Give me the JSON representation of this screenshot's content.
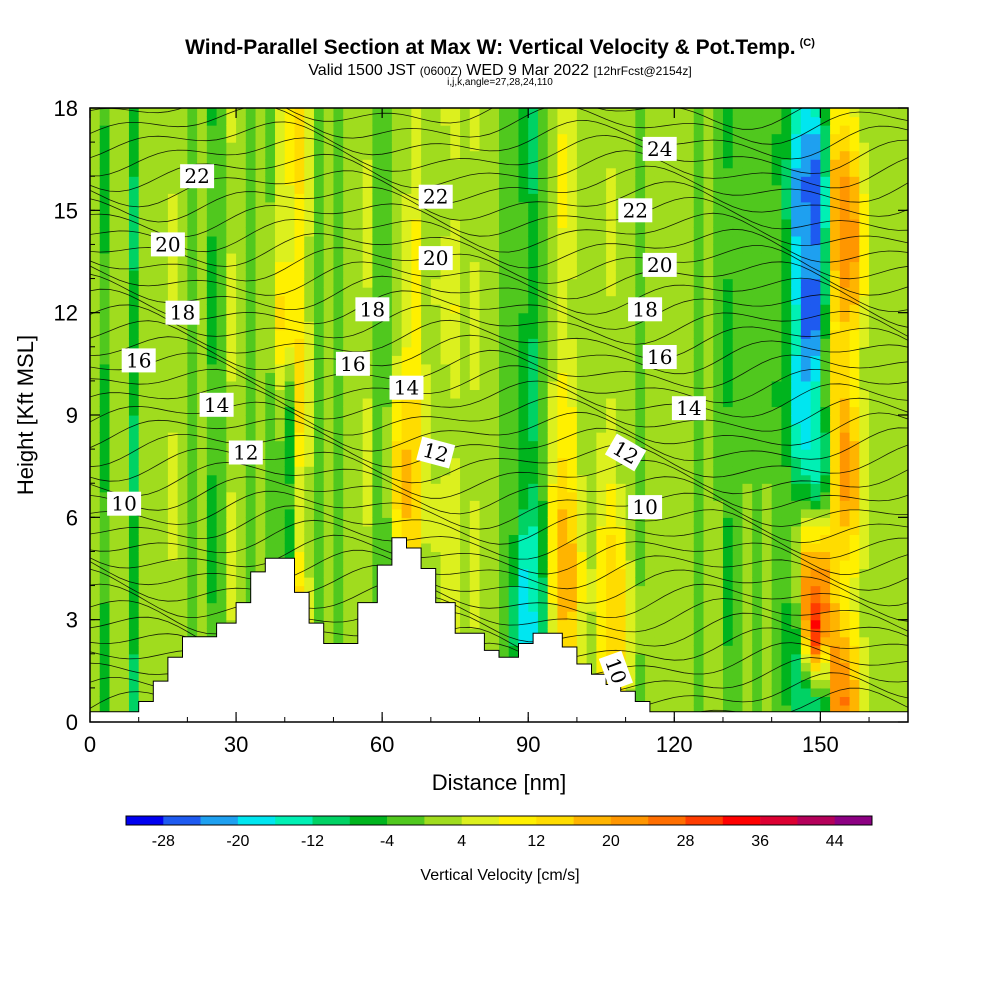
{
  "title": {
    "main": "Wind-Parallel Section at Max W: Vertical Velocity & Pot.Temp.",
    "copyright": "(C)",
    "sub_valid": "Valid 1500 JST",
    "sub_z": "(0600Z)",
    "sub_date": "WED 9 Mar 2022",
    "sub_fcst": "[12hrFcst@2154z]",
    "sub3": "i,j,k,angle=27,28,24,110"
  },
  "chart_data": {
    "type": "heatmap",
    "xlabel": "Distance [nm]",
    "ylabel": "Height [Kft MSL]",
    "xlim": [
      0,
      168
    ],
    "ylim": [
      0,
      18
    ],
    "x_ticks": [
      0,
      30,
      60,
      90,
      120,
      150
    ],
    "y_ticks": [
      0,
      3,
      6,
      9,
      12,
      15,
      18
    ],
    "colorbar": {
      "title": "Vertical Velocity [cm/s]",
      "levels": [
        -32,
        -28,
        -24,
        -20,
        -16,
        -12,
        -8,
        -4,
        0,
        4,
        8,
        12,
        16,
        20,
        24,
        28,
        32,
        36,
        40,
        44,
        48
      ],
      "tick_labels": [
        "-28",
        "-20",
        "-12",
        "-4",
        "4",
        "12",
        "20",
        "28",
        "36",
        "44"
      ],
      "tick_values": [
        -28,
        -20,
        -12,
        -4,
        4,
        12,
        20,
        28,
        36,
        44
      ],
      "colors": [
        "#0000f0",
        "#1e5af0",
        "#1ea0f0",
        "#00e6f0",
        "#00f0b4",
        "#00d264",
        "#00b41e",
        "#50c81e",
        "#a0dc1e",
        "#dcf01e",
        "#fff000",
        "#ffdc00",
        "#ffb400",
        "#ff9600",
        "#ff6e00",
        "#ff3c00",
        "#ff0000",
        "#dc0032",
        "#b4005a",
        "#8c0082"
      ]
    },
    "vertical_velocity_columns": [
      {
        "x": 0,
        "w": 0
      },
      {
        "x": 2,
        "w": -6
      },
      {
        "x": 4,
        "w": 0
      },
      {
        "x": 6,
        "w": 2
      },
      {
        "x": 8,
        "w": -10
      },
      {
        "x": 10,
        "w": 2
      },
      {
        "x": 12,
        "w": 4
      },
      {
        "x": 14,
        "w": 2
      },
      {
        "x": 16,
        "w": 6
      },
      {
        "x": 18,
        "w": 0
      },
      {
        "x": 20,
        "w": -2
      },
      {
        "x": 22,
        "w": 4
      },
      {
        "x": 24,
        "w": -6
      },
      {
        "x": 26,
        "w": -4
      },
      {
        "x": 28,
        "w": 6
      },
      {
        "x": 30,
        "w": 0
      },
      {
        "x": 32,
        "w": -2
      },
      {
        "x": 34,
        "w": 2
      },
      {
        "x": 36,
        "w": -4
      },
      {
        "x": 38,
        "w": -2
      },
      {
        "x": 40,
        "w": -10
      },
      {
        "x": 42,
        "w": 14
      },
      {
        "x": 44,
        "w": 6
      },
      {
        "x": 46,
        "w": -4
      },
      {
        "x": 48,
        "w": 0
      },
      {
        "x": 50,
        "w": -2
      },
      {
        "x": 52,
        "w": 4
      },
      {
        "x": 54,
        "w": 2
      },
      {
        "x": 56,
        "w": 6
      },
      {
        "x": 58,
        "w": -2
      },
      {
        "x": 60,
        "w": -4
      },
      {
        "x": 62,
        "w": 2
      },
      {
        "x": 64,
        "w": 6
      },
      {
        "x": 66,
        "w": 10
      },
      {
        "x": 68,
        "w": 2
      },
      {
        "x": 70,
        "w": 4
      },
      {
        "x": 72,
        "w": 6
      },
      {
        "x": 74,
        "w": 8
      },
      {
        "x": 76,
        "w": 4
      },
      {
        "x": 78,
        "w": 6
      },
      {
        "x": 80,
        "w": 4
      },
      {
        "x": 82,
        "w": 2
      },
      {
        "x": 84,
        "w": -2
      },
      {
        "x": 86,
        "w": 0
      },
      {
        "x": 88,
        "w": -6
      },
      {
        "x": 90,
        "w": -10
      },
      {
        "x": 92,
        "w": -4
      },
      {
        "x": 94,
        "w": 4
      },
      {
        "x": 96,
        "w": 10
      },
      {
        "x": 98,
        "w": 8
      },
      {
        "x": 100,
        "w": 2
      },
      {
        "x": 102,
        "w": 0
      },
      {
        "x": 104,
        "w": 4
      },
      {
        "x": 106,
        "w": 6
      },
      {
        "x": 108,
        "w": 2
      },
      {
        "x": 110,
        "w": 0
      },
      {
        "x": 112,
        "w": -2
      },
      {
        "x": 114,
        "w": 0
      },
      {
        "x": 116,
        "w": 2
      },
      {
        "x": 118,
        "w": 4
      },
      {
        "x": 120,
        "w": 2
      },
      {
        "x": 122,
        "w": 0
      },
      {
        "x": 124,
        "w": -2
      },
      {
        "x": 126,
        "w": 2
      },
      {
        "x": 128,
        "w": 0
      },
      {
        "x": 130,
        "w": -6
      },
      {
        "x": 132,
        "w": -2
      },
      {
        "x": 134,
        "w": 0
      },
      {
        "x": 136,
        "w": -2
      },
      {
        "x": 138,
        "w": 0
      },
      {
        "x": 140,
        "w": -4
      },
      {
        "x": 142,
        "w": -6
      },
      {
        "x": 144,
        "w": -16
      },
      {
        "x": 146,
        "w": -24
      },
      {
        "x": 148,
        "w": -28
      },
      {
        "x": 150,
        "w": -14
      },
      {
        "x": 152,
        "w": 20
      },
      {
        "x": 154,
        "w": 24
      },
      {
        "x": 156,
        "w": 18
      },
      {
        "x": 158,
        "w": 8
      },
      {
        "x": 160,
        "w": 2
      },
      {
        "x": 162,
        "w": 0
      },
      {
        "x": 164,
        "w": 2
      },
      {
        "x": 166,
        "w": 0
      }
    ],
    "anomalies": [
      {
        "x": 40,
        "y": 12.0,
        "w": 14
      },
      {
        "x": 41,
        "y": 17.0,
        "w": 12
      },
      {
        "x": 65,
        "y": 7.0,
        "w": 18
      },
      {
        "x": 66,
        "y": 8.5,
        "w": 16
      },
      {
        "x": 90,
        "y": 3.2,
        "w": -24
      },
      {
        "x": 92,
        "y": 4.5,
        "w": -14
      },
      {
        "x": 97,
        "y": 5.5,
        "w": 16
      },
      {
        "x": 98,
        "y": 4.0,
        "w": 18
      },
      {
        "x": 107,
        "y": 4.0,
        "w": 16
      },
      {
        "x": 108,
        "y": 2.5,
        "w": 14
      },
      {
        "x": 149,
        "y": 3.5,
        "w": 44
      },
      {
        "x": 149,
        "y": 5.0,
        "w": 24
      },
      {
        "x": 155,
        "y": 14.0,
        "w": 22
      },
      {
        "x": 152,
        "y": 10.0,
        "w": 18
      },
      {
        "x": 148,
        "y": 12.0,
        "w": -28
      },
      {
        "x": 147,
        "y": 15.0,
        "w": -24
      },
      {
        "x": 149,
        "y": 8.0,
        "w": -16
      }
    ],
    "terrain": [
      {
        "x": 0,
        "h": 0.3
      },
      {
        "x": 10,
        "h": 0.6
      },
      {
        "x": 13,
        "h": 1.2
      },
      {
        "x": 16,
        "h": 1.9
      },
      {
        "x": 19,
        "h": 2.5
      },
      {
        "x": 26,
        "h": 2.9
      },
      {
        "x": 30,
        "h": 3.5
      },
      {
        "x": 33,
        "h": 4.4
      },
      {
        "x": 36,
        "h": 4.8
      },
      {
        "x": 42,
        "h": 3.8
      },
      {
        "x": 45,
        "h": 2.9
      },
      {
        "x": 48,
        "h": 2.3
      },
      {
        "x": 55,
        "h": 3.5
      },
      {
        "x": 59,
        "h": 4.6
      },
      {
        "x": 62,
        "h": 5.4
      },
      {
        "x": 65,
        "h": 5.1
      },
      {
        "x": 68,
        "h": 4.5
      },
      {
        "x": 71,
        "h": 3.5
      },
      {
        "x": 75,
        "h": 2.6
      },
      {
        "x": 81,
        "h": 2.1
      },
      {
        "x": 84,
        "h": 1.9
      },
      {
        "x": 88,
        "h": 2.3
      },
      {
        "x": 91,
        "h": 2.6
      },
      {
        "x": 97,
        "h": 2.2
      },
      {
        "x": 100,
        "h": 1.7
      },
      {
        "x": 103,
        "h": 1.4
      },
      {
        "x": 106,
        "h": 1.1
      },
      {
        "x": 109,
        "h": 0.9
      },
      {
        "x": 112,
        "h": 0.6
      },
      {
        "x": 115,
        "h": 0.3
      },
      {
        "x": 168,
        "h": 0.3
      }
    ],
    "theta_contours_label": [
      "10",
      "12",
      "14",
      "16",
      "18",
      "20",
      "22",
      "24"
    ],
    "contour_labels": [
      {
        "text": "22",
        "x": 22,
        "y": 16.0,
        "rot": 0
      },
      {
        "text": "20",
        "x": 16,
        "y": 14.0,
        "rot": 0
      },
      {
        "text": "18",
        "x": 19,
        "y": 12.0,
        "rot": 0
      },
      {
        "text": "16",
        "x": 10,
        "y": 10.6,
        "rot": 0
      },
      {
        "text": "14",
        "x": 26,
        "y": 9.3,
        "rot": 0
      },
      {
        "text": "12",
        "x": 32,
        "y": 7.9,
        "rot": 0
      },
      {
        "text": "10",
        "x": 7,
        "y": 6.4,
        "rot": 0
      },
      {
        "text": "22",
        "x": 71,
        "y": 15.4,
        "rot": 0
      },
      {
        "text": "20",
        "x": 71,
        "y": 13.6,
        "rot": 0
      },
      {
        "text": "18",
        "x": 58,
        "y": 12.1,
        "rot": 0
      },
      {
        "text": "16",
        "x": 54,
        "y": 10.5,
        "rot": 0
      },
      {
        "text": "14",
        "x": 65,
        "y": 9.8,
        "rot": 0
      },
      {
        "text": "12",
        "x": 71,
        "y": 7.9,
        "rot": 15
      },
      {
        "text": "24",
        "x": 117,
        "y": 16.8,
        "rot": 0
      },
      {
        "text": "22",
        "x": 112,
        "y": 15.0,
        "rot": 0
      },
      {
        "text": "20",
        "x": 117,
        "y": 13.4,
        "rot": 0
      },
      {
        "text": "18",
        "x": 114,
        "y": 12.1,
        "rot": 0
      },
      {
        "text": "16",
        "x": 117,
        "y": 10.7,
        "rot": 0
      },
      {
        "text": "14",
        "x": 123,
        "y": 9.2,
        "rot": 0
      },
      {
        "text": "12",
        "x": 110,
        "y": 7.9,
        "rot": 30
      },
      {
        "text": "10",
        "x": 114,
        "y": 6.3,
        "rot": 0
      },
      {
        "text": "10",
        "x": 108,
        "y": 1.5,
        "rot": 70
      }
    ]
  }
}
